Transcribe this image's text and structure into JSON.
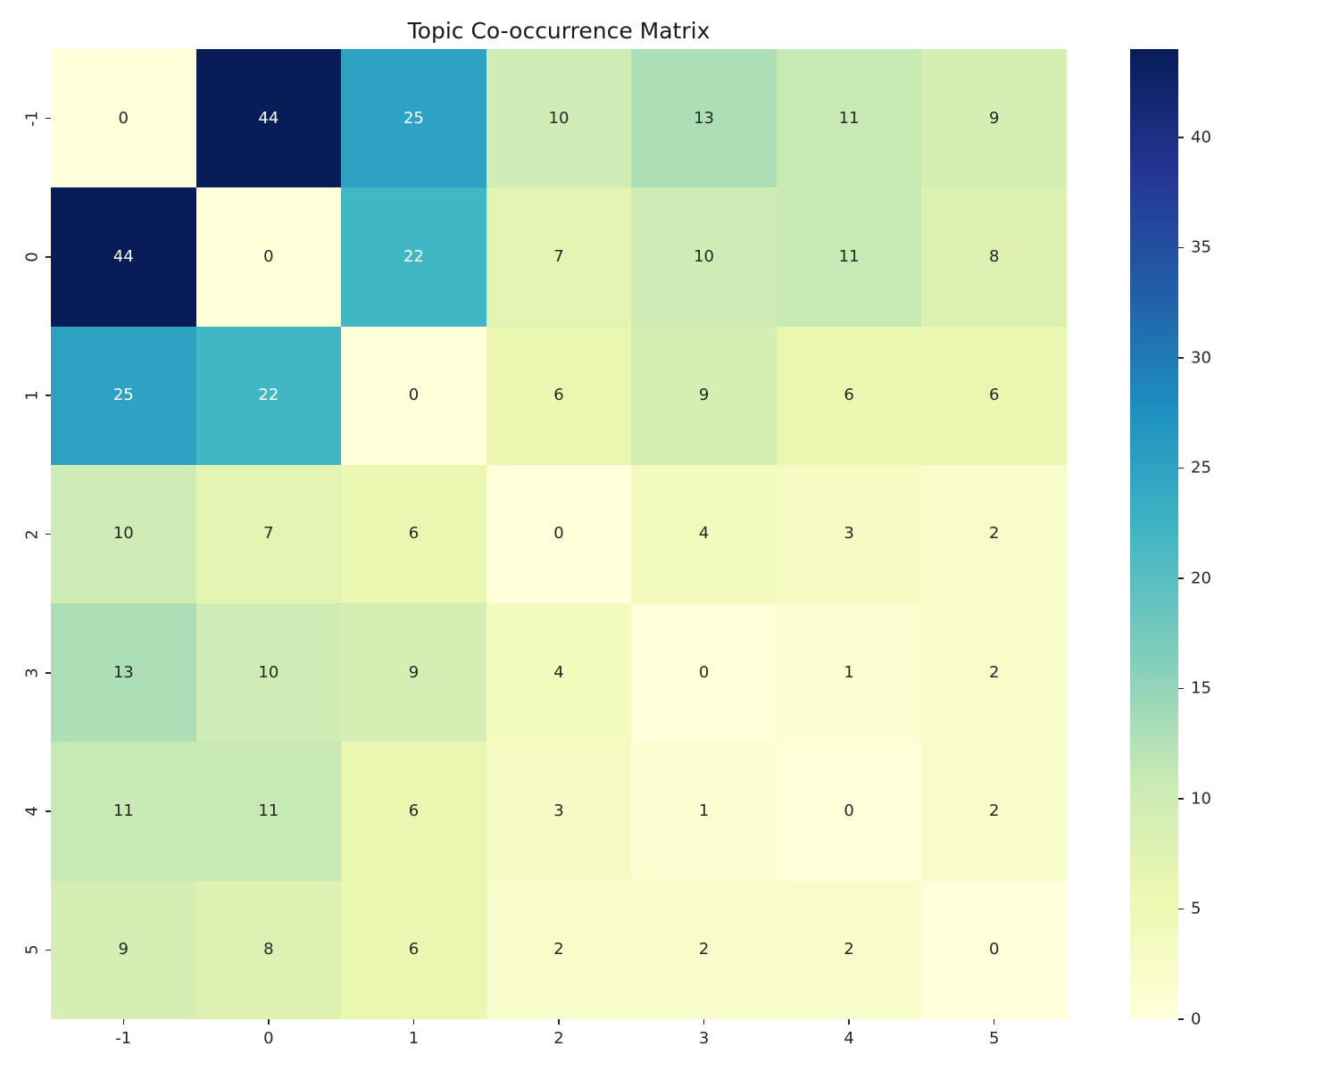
{
  "chart_data": {
    "type": "heatmap",
    "title": "Topic Co-occurrence Matrix",
    "x_labels": [
      "-1",
      "0",
      "1",
      "2",
      "3",
      "4",
      "5"
    ],
    "y_labels": [
      "-1",
      "0",
      "1",
      "2",
      "3",
      "4",
      "5"
    ],
    "matrix": [
      [
        0,
        44,
        25,
        10,
        13,
        11,
        9
      ],
      [
        44,
        0,
        22,
        7,
        10,
        11,
        8
      ],
      [
        25,
        22,
        0,
        6,
        9,
        6,
        6
      ],
      [
        10,
        7,
        6,
        0,
        4,
        3,
        2
      ],
      [
        13,
        10,
        9,
        4,
        0,
        1,
        2
      ],
      [
        11,
        11,
        6,
        3,
        1,
        0,
        2
      ],
      [
        9,
        8,
        6,
        2,
        2,
        2,
        0
      ]
    ],
    "vmin": 0,
    "vmax": 44,
    "colormap": {
      "name": "YlGnBu",
      "stops": [
        {
          "pos": 0.0,
          "color": "#ffffd9"
        },
        {
          "pos": 0.125,
          "color": "#edf8b1"
        },
        {
          "pos": 0.25,
          "color": "#c7e9b4"
        },
        {
          "pos": 0.375,
          "color": "#7fcdbb"
        },
        {
          "pos": 0.5,
          "color": "#41b6c4"
        },
        {
          "pos": 0.625,
          "color": "#1d91c0"
        },
        {
          "pos": 0.75,
          "color": "#225ea8"
        },
        {
          "pos": 0.875,
          "color": "#253494"
        },
        {
          "pos": 1.0,
          "color": "#081d58"
        }
      ]
    },
    "colorbar_ticks": [
      "0",
      "5",
      "10",
      "15",
      "20",
      "25",
      "30",
      "35",
      "40"
    ],
    "annotation_colors": {
      "dark": "#262626",
      "light": "#ffffff"
    },
    "axis_text_color": "#262626",
    "title_color": "#1a1a1a",
    "background": "#ffffff",
    "grid": false,
    "legend": "colorbar-right"
  }
}
